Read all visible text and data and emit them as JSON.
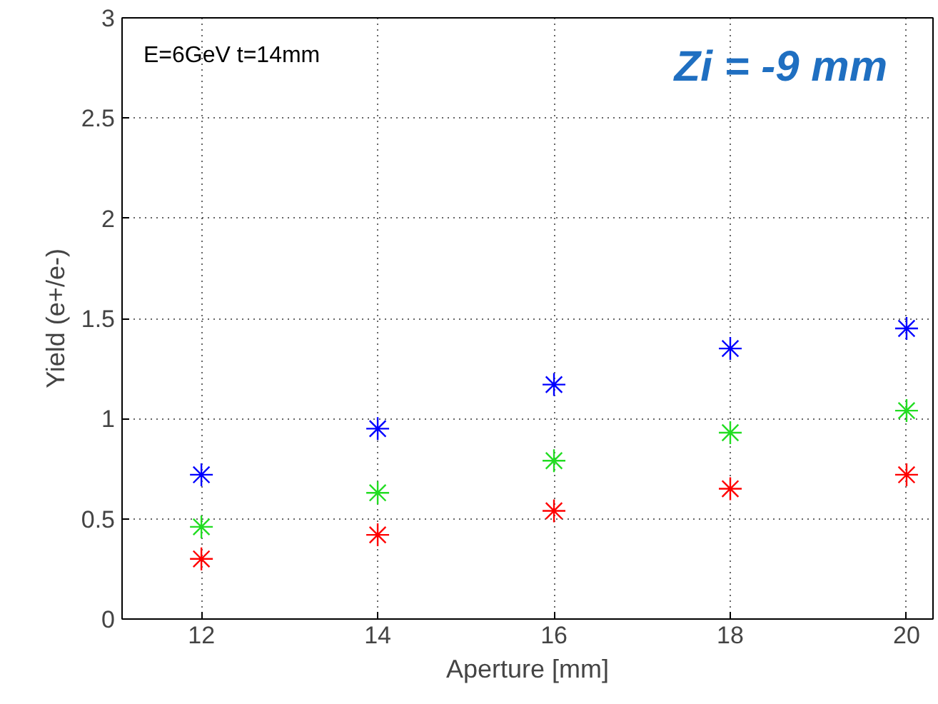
{
  "chart_data": {
    "type": "scatter",
    "xlabel": "Aperture [mm]",
    "ylabel": "Yield (e+/e-)",
    "x": [
      12,
      14,
      16,
      18,
      20
    ],
    "series": [
      {
        "color": "#0000ff",
        "values": [
          0.72,
          0.95,
          1.17,
          1.35,
          1.45
        ]
      },
      {
        "color": "#22dd22",
        "values": [
          0.46,
          0.63,
          0.79,
          0.93,
          1.04
        ]
      },
      {
        "color": "#ff0000",
        "values": [
          0.3,
          0.42,
          0.54,
          0.65,
          0.72
        ]
      }
    ],
    "xlim": [
      11.1,
      20.3
    ],
    "ylim": [
      0,
      3
    ],
    "xticks": [
      12,
      14,
      16,
      18,
      20
    ],
    "yticks": [
      0,
      0.5,
      1,
      1.5,
      2,
      2.5,
      3
    ],
    "annotations": [
      "E=6GeV   t=14mm",
      "Zi = -9 mm"
    ],
    "grid": true,
    "marker": "cross"
  }
}
